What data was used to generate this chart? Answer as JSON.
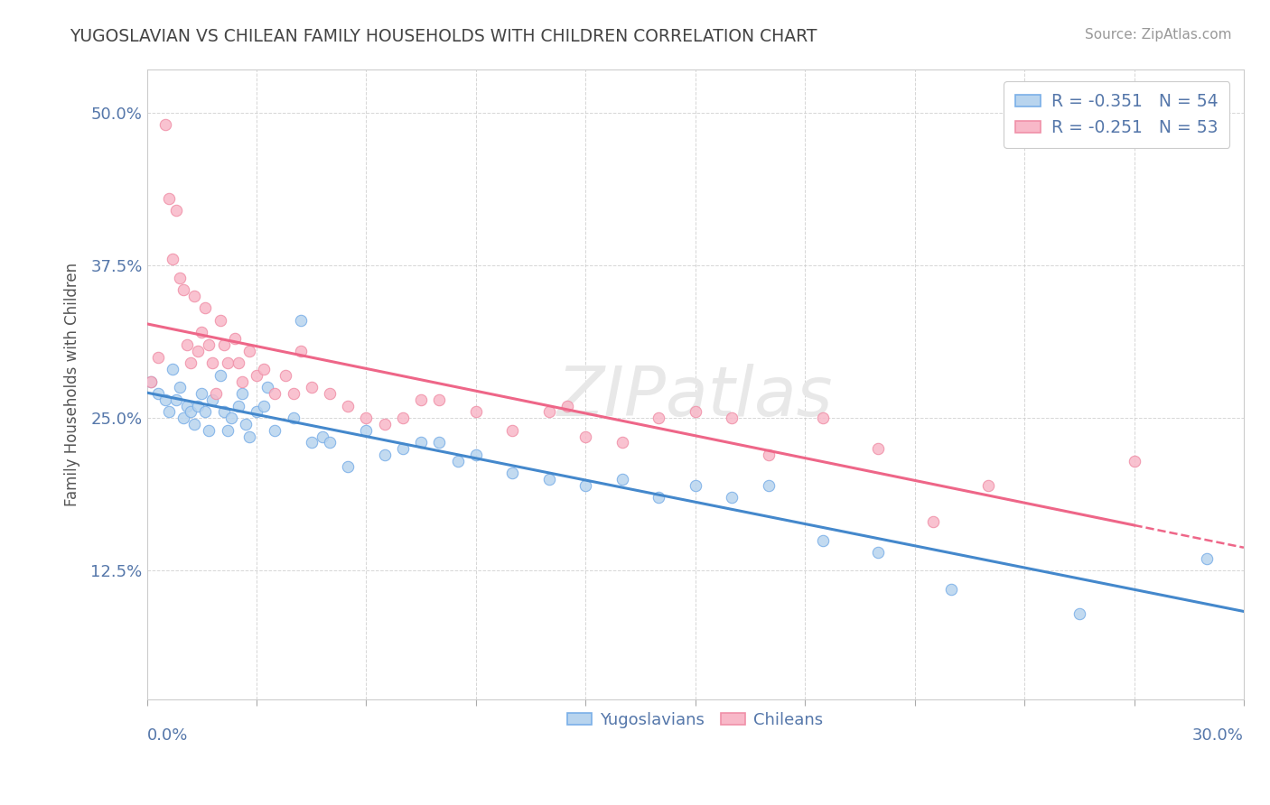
{
  "title": "YUGOSLAVIAN VS CHILEAN FAMILY HOUSEHOLDS WITH CHILDREN CORRELATION CHART",
  "source": "Source: ZipAtlas.com",
  "ylabel": "Family Households with Children",
  "yticks": [
    0.125,
    0.25,
    0.375,
    0.5
  ],
  "ytick_labels": [
    "12.5%",
    "25.0%",
    "37.5%",
    "50.0%"
  ],
  "xmin": 0.0,
  "xmax": 0.3,
  "ymin": 0.02,
  "ymax": 0.535,
  "legend_r1": "R = -0.351",
  "legend_n1": "N = 54",
  "legend_r2": "R = -0.251",
  "legend_n2": "N = 53",
  "color_yugo_face": "#b8d4ee",
  "color_yugo_edge": "#7aafe8",
  "color_chile_face": "#f8b8c8",
  "color_chile_edge": "#f090a8",
  "color_yugo_line": "#4488cc",
  "color_chile_line": "#ee6688",
  "color_text_axis": "#5577aa",
  "color_title": "#444444",
  "background": "#ffffff",
  "yugo_x": [
    0.001,
    0.003,
    0.005,
    0.006,
    0.007,
    0.008,
    0.009,
    0.01,
    0.011,
    0.012,
    0.013,
    0.014,
    0.015,
    0.016,
    0.017,
    0.018,
    0.02,
    0.021,
    0.022,
    0.023,
    0.025,
    0.026,
    0.027,
    0.028,
    0.03,
    0.032,
    0.033,
    0.035,
    0.04,
    0.042,
    0.045,
    0.048,
    0.05,
    0.055,
    0.06,
    0.065,
    0.07,
    0.075,
    0.08,
    0.085,
    0.09,
    0.1,
    0.11,
    0.12,
    0.13,
    0.14,
    0.15,
    0.16,
    0.17,
    0.185,
    0.2,
    0.22,
    0.255,
    0.29
  ],
  "yugo_y": [
    0.28,
    0.27,
    0.265,
    0.255,
    0.29,
    0.265,
    0.275,
    0.25,
    0.26,
    0.255,
    0.245,
    0.26,
    0.27,
    0.255,
    0.24,
    0.265,
    0.285,
    0.255,
    0.24,
    0.25,
    0.26,
    0.27,
    0.245,
    0.235,
    0.255,
    0.26,
    0.275,
    0.24,
    0.25,
    0.33,
    0.23,
    0.235,
    0.23,
    0.21,
    0.24,
    0.22,
    0.225,
    0.23,
    0.23,
    0.215,
    0.22,
    0.205,
    0.2,
    0.195,
    0.2,
    0.185,
    0.195,
    0.185,
    0.195,
    0.15,
    0.14,
    0.11,
    0.09,
    0.135
  ],
  "chile_x": [
    0.001,
    0.003,
    0.005,
    0.006,
    0.007,
    0.008,
    0.009,
    0.01,
    0.011,
    0.012,
    0.013,
    0.014,
    0.015,
    0.016,
    0.017,
    0.018,
    0.019,
    0.02,
    0.021,
    0.022,
    0.024,
    0.025,
    0.026,
    0.028,
    0.03,
    0.032,
    0.035,
    0.038,
    0.04,
    0.042,
    0.045,
    0.05,
    0.055,
    0.06,
    0.065,
    0.07,
    0.075,
    0.08,
    0.09,
    0.1,
    0.11,
    0.115,
    0.12,
    0.13,
    0.14,
    0.15,
    0.16,
    0.17,
    0.185,
    0.2,
    0.215,
    0.23,
    0.27
  ],
  "chile_y": [
    0.28,
    0.3,
    0.49,
    0.43,
    0.38,
    0.42,
    0.365,
    0.355,
    0.31,
    0.295,
    0.35,
    0.305,
    0.32,
    0.34,
    0.31,
    0.295,
    0.27,
    0.33,
    0.31,
    0.295,
    0.315,
    0.295,
    0.28,
    0.305,
    0.285,
    0.29,
    0.27,
    0.285,
    0.27,
    0.305,
    0.275,
    0.27,
    0.26,
    0.25,
    0.245,
    0.25,
    0.265,
    0.265,
    0.255,
    0.24,
    0.255,
    0.26,
    0.235,
    0.23,
    0.25,
    0.255,
    0.25,
    0.22,
    0.25,
    0.225,
    0.165,
    0.195,
    0.215
  ]
}
